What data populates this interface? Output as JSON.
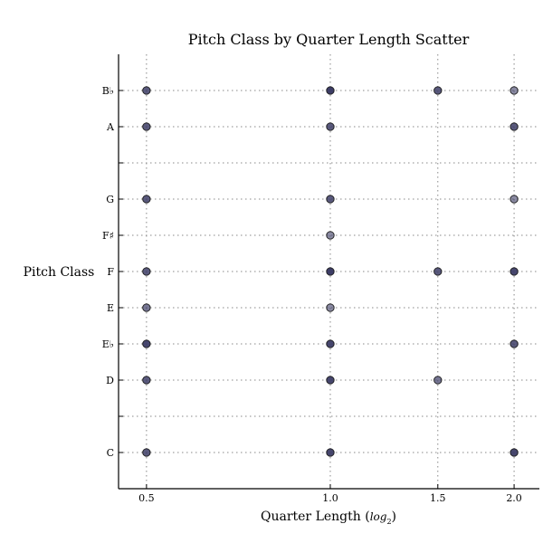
{
  "chart_data": {
    "type": "scatter",
    "title": "Pitch Class by Quarter Length Scatter",
    "xlabel": "Quarter Length (",
    "xlabel_math": "log",
    "xlabel_sub": "2",
    "xlabel_close": ")",
    "ylabel": "Pitch Class",
    "x_scale": "log2",
    "xlim": [
      0.45,
      2.2
    ],
    "x_ticks": [
      {
        "value": 0.5,
        "label": "0.5"
      },
      {
        "value": 1.0,
        "label": "1.0"
      },
      {
        "value": 1.5,
        "label": "1.5"
      },
      {
        "value": 2.0,
        "label": "2.0"
      }
    ],
    "ylim": [
      -1,
      11
    ],
    "y_ticks": [
      {
        "value": 0,
        "label": "C"
      },
      {
        "value": 1,
        "label": ""
      },
      {
        "value": 2,
        "label": "D"
      },
      {
        "value": 3,
        "label": "E♭"
      },
      {
        "value": 4,
        "label": "E"
      },
      {
        "value": 5,
        "label": "F"
      },
      {
        "value": 6,
        "label": "F♯"
      },
      {
        "value": 7,
        "label": "G"
      },
      {
        "value": 8,
        "label": ""
      },
      {
        "value": 9,
        "label": "A"
      },
      {
        "value": 10,
        "label": "B♭"
      }
    ],
    "grid": true,
    "marker_color": "#3d3d66",
    "points": [
      {
        "x": 0.5,
        "y": 10,
        "a": 0.85
      },
      {
        "x": 1.0,
        "y": 10,
        "a": 1.0
      },
      {
        "x": 1.5,
        "y": 10,
        "a": 0.85
      },
      {
        "x": 2.0,
        "y": 10,
        "a": 0.6
      },
      {
        "x": 0.5,
        "y": 9,
        "a": 0.85
      },
      {
        "x": 1.0,
        "y": 9,
        "a": 0.85
      },
      {
        "x": 2.0,
        "y": 9,
        "a": 0.85
      },
      {
        "x": 0.5,
        "y": 7,
        "a": 0.85
      },
      {
        "x": 1.0,
        "y": 7,
        "a": 0.85
      },
      {
        "x": 2.0,
        "y": 7,
        "a": 0.6
      },
      {
        "x": 1.0,
        "y": 6,
        "a": 0.6
      },
      {
        "x": 0.5,
        "y": 5,
        "a": 0.85
      },
      {
        "x": 1.0,
        "y": 5,
        "a": 1.0
      },
      {
        "x": 1.5,
        "y": 5,
        "a": 0.85
      },
      {
        "x": 2.0,
        "y": 5,
        "a": 0.95
      },
      {
        "x": 0.5,
        "y": 4,
        "a": 0.7
      },
      {
        "x": 1.0,
        "y": 4,
        "a": 0.6
      },
      {
        "x": 0.5,
        "y": 3,
        "a": 0.95
      },
      {
        "x": 1.0,
        "y": 3,
        "a": 0.95
      },
      {
        "x": 2.0,
        "y": 3,
        "a": 0.85
      },
      {
        "x": 0.5,
        "y": 2,
        "a": 0.85
      },
      {
        "x": 1.0,
        "y": 2,
        "a": 0.95
      },
      {
        "x": 1.5,
        "y": 2,
        "a": 0.7
      },
      {
        "x": 0.5,
        "y": 0,
        "a": 0.85
      },
      {
        "x": 1.0,
        "y": 0,
        "a": 0.95
      },
      {
        "x": 2.0,
        "y": 0,
        "a": 0.95
      }
    ]
  }
}
